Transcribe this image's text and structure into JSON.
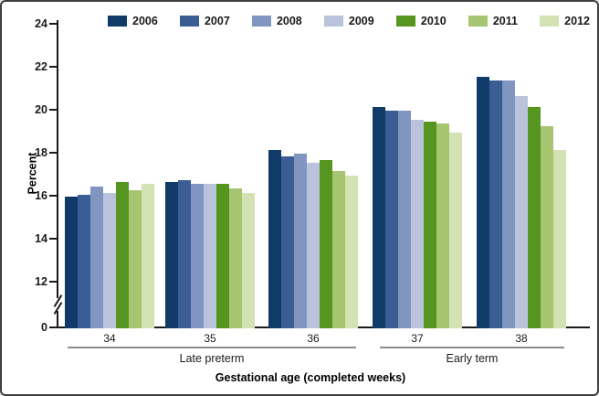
{
  "figure": {
    "background": "#ffffff",
    "border_color": "#3f3f3f"
  },
  "chart_data": {
    "type": "bar",
    "title": "",
    "ylabel": "Percent",
    "xlabel": "Gestational age (completed weeks)",
    "categories": [
      "34",
      "35",
      "36",
      "37",
      "38"
    ],
    "category_groups": [
      {
        "label": "Late preterm",
        "spans_categories": [
          "34",
          "35",
          "36"
        ]
      },
      {
        "label": "Early term",
        "spans_categories": [
          "37",
          "38"
        ]
      }
    ],
    "series": [
      {
        "name": "2006",
        "color": "#103a68",
        "values": [
          15.9,
          16.6,
          18.1,
          20.1,
          21.5
        ]
      },
      {
        "name": "2007",
        "color": "#3a5e94",
        "values": [
          16.0,
          16.7,
          17.8,
          19.9,
          21.3
        ]
      },
      {
        "name": "2008",
        "color": "#8095bf",
        "values": [
          16.4,
          16.5,
          17.9,
          19.9,
          21.3
        ]
      },
      {
        "name": "2009",
        "color": "#b9c3dc",
        "values": [
          16.1,
          16.5,
          17.5,
          19.5,
          20.6
        ]
      },
      {
        "name": "2010",
        "color": "#579521",
        "values": [
          16.6,
          16.5,
          17.6,
          19.4,
          20.1
        ]
      },
      {
        "name": "2011",
        "color": "#a6c571",
        "values": [
          16.2,
          16.3,
          17.1,
          19.3,
          19.2
        ]
      },
      {
        "name": "2012",
        "color": "#d3e2b2",
        "values": [
          16.5,
          16.1,
          16.9,
          18.9,
          18.1
        ]
      }
    ],
    "y_axis": {
      "ticks": [
        24,
        22,
        20,
        18,
        16,
        14,
        12,
        0
      ],
      "axis_break_between": [
        0,
        12
      ],
      "range_shown": [
        12,
        24
      ],
      "grid": false
    },
    "legend_position": "top"
  }
}
